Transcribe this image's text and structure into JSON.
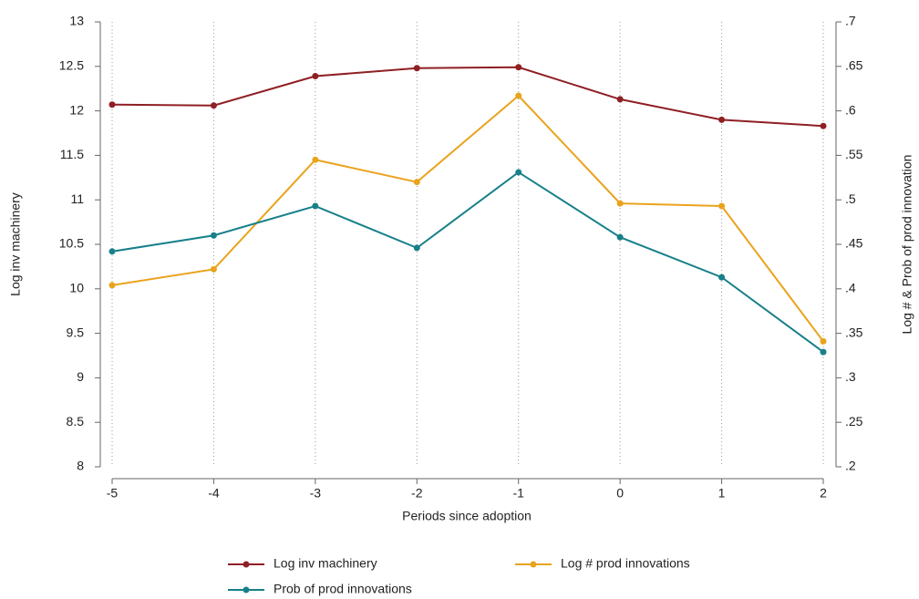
{
  "chart_data": {
    "type": "line",
    "x_label": "Periods since adoption",
    "y_label": "Log inv machinery",
    "y2_label": "Log # & Prob of prod innovation",
    "x": [
      -5,
      -4,
      -3,
      -2,
      -1,
      0,
      1,
      2
    ],
    "xlim": [
      -5,
      2
    ],
    "xticks": [
      -5,
      -4,
      -3,
      -2,
      -1,
      0,
      1,
      2
    ],
    "ylim": [
      8,
      13
    ],
    "yticks": [
      8,
      8.5,
      9,
      9.5,
      10,
      10.5,
      11,
      11.5,
      12,
      12.5,
      13
    ],
    "y2lim": [
      0.2,
      0.7
    ],
    "y2ticks": [
      {
        "value": 0.2,
        "label": ".2"
      },
      {
        "value": 0.25,
        "label": ".25"
      },
      {
        "value": 0.3,
        "label": ".3"
      },
      {
        "value": 0.35,
        "label": ".35"
      },
      {
        "value": 0.4,
        "label": ".4"
      },
      {
        "value": 0.45,
        "label": ".45"
      },
      {
        "value": 0.5,
        "label": ".5"
      },
      {
        "value": 0.55,
        "label": ".55"
      },
      {
        "value": 0.6,
        "label": ".6"
      },
      {
        "value": 0.65,
        "label": ".65"
      },
      {
        "value": 0.7,
        "label": ".7"
      }
    ],
    "x_grid": true,
    "legend": "bottom",
    "series": [
      {
        "name": "Log inv machinery",
        "color": "#8f1f24",
        "axis": "y",
        "values": [
          12.07,
          12.06,
          12.39,
          12.48,
          12.49,
          12.13,
          11.9,
          11.83
        ]
      },
      {
        "name": "Log # prod innovations",
        "color": "#eaa31d",
        "axis": "y2",
        "values": [
          0.404,
          0.422,
          0.545,
          0.52,
          0.617,
          0.496,
          0.493,
          0.341
        ]
      },
      {
        "name": "Prob of prod innovations",
        "color": "#17808a",
        "axis": "y2",
        "values": [
          0.442,
          0.46,
          0.493,
          0.446,
          0.531,
          0.458,
          0.413,
          0.329
        ]
      }
    ]
  }
}
